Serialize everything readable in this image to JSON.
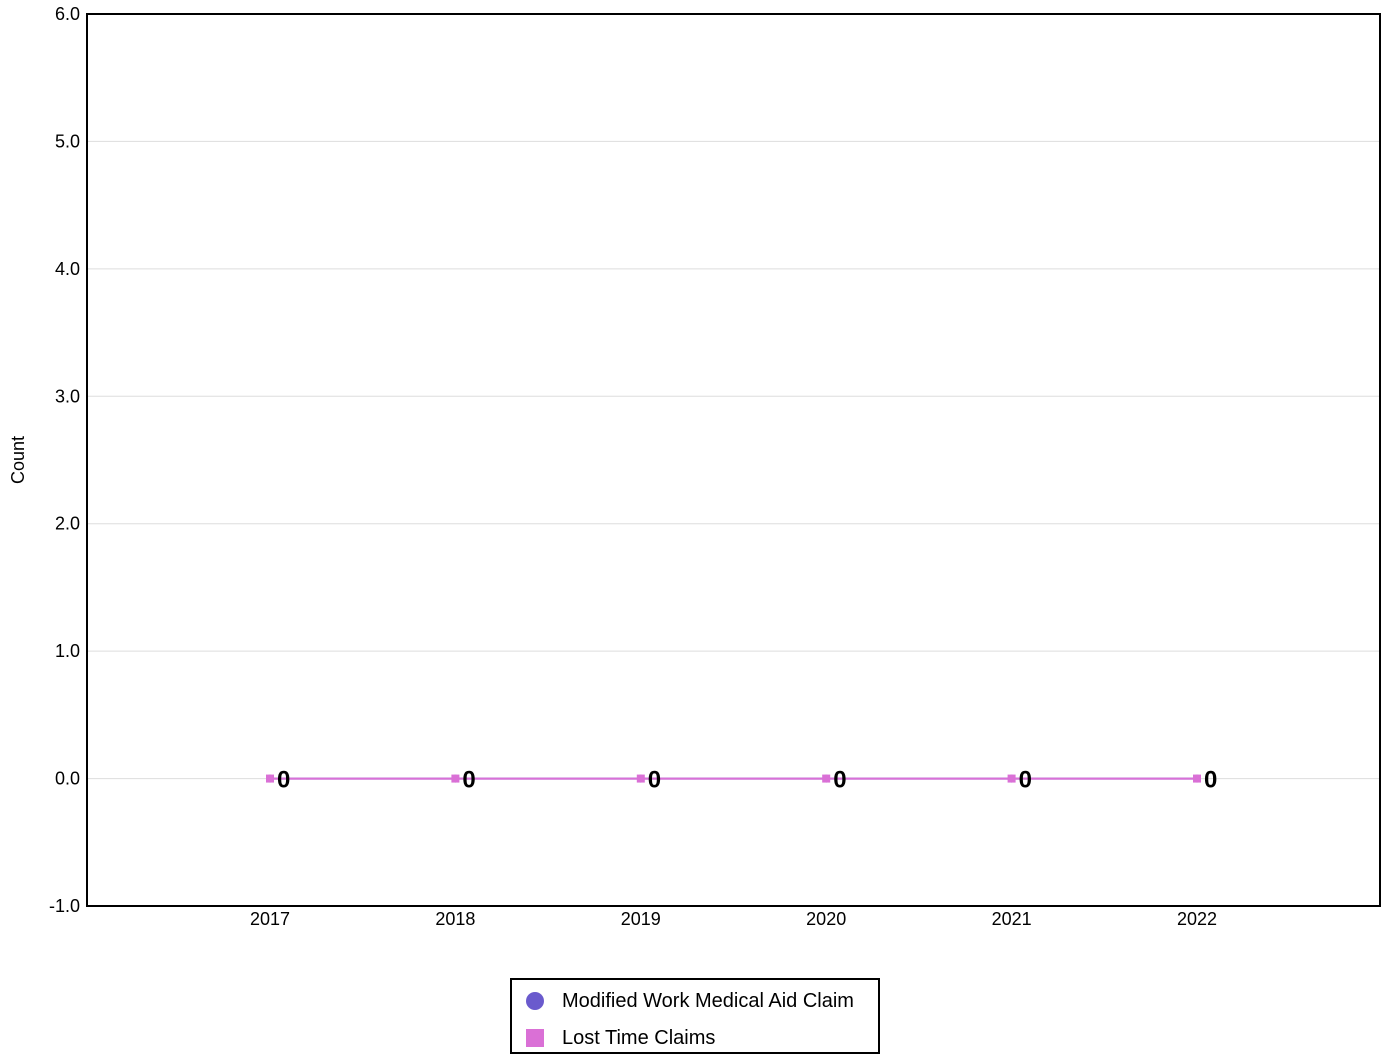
{
  "chart_data": {
    "type": "line",
    "title": "",
    "xlabel": "",
    "ylabel": "Count",
    "categories": [
      "2017",
      "2018",
      "2019",
      "2020",
      "2021",
      "2022"
    ],
    "ylim": [
      -1.0,
      6.0
    ],
    "yticks": [
      "-1.0",
      "0.0",
      "1.0",
      "2.0",
      "3.0",
      "4.0",
      "5.0",
      "6.0"
    ],
    "grid": true,
    "legend_position": "bottom-center",
    "series": [
      {
        "name": "Modified Work Medical Aid Claim",
        "marker": "circle",
        "color": "#6a5acd",
        "values": [
          0,
          0,
          0,
          0,
          0,
          0
        ],
        "labels": [
          "0",
          "0",
          "0",
          "0",
          "0",
          "0"
        ]
      },
      {
        "name": "Lost Time Claims",
        "marker": "square",
        "color": "#da70d6",
        "values": [
          0,
          0,
          0,
          0,
          0,
          0
        ],
        "labels": [
          "0",
          "0",
          "0",
          "0",
          "0",
          "0"
        ]
      }
    ]
  }
}
